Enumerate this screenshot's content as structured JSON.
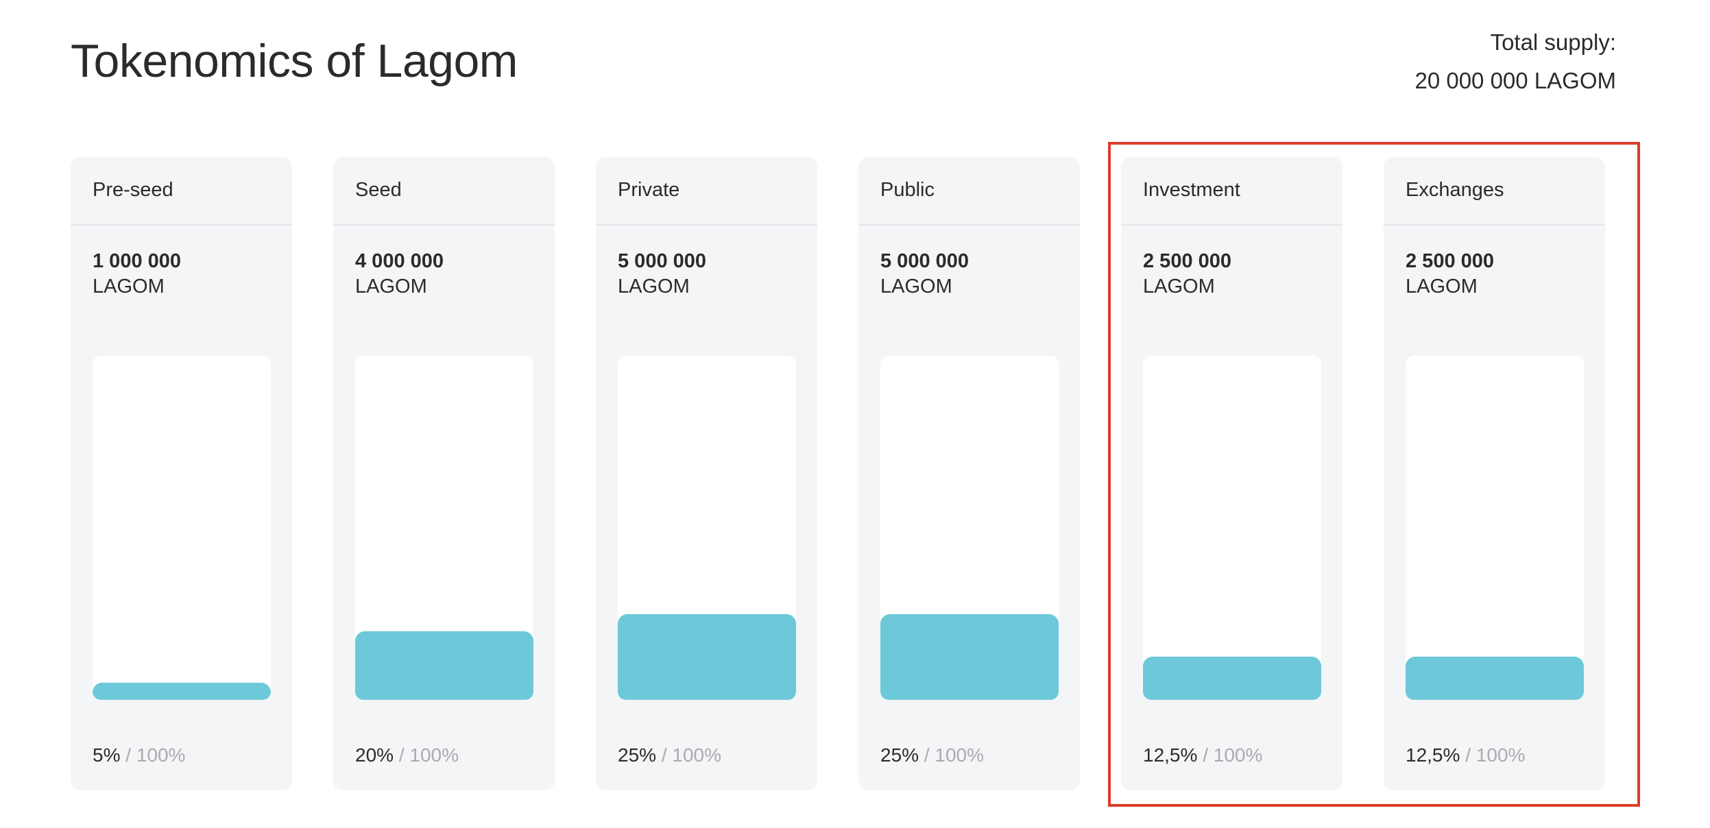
{
  "title": "Tokenomics of Lagom",
  "total_supply": {
    "label": "Total supply:",
    "value": "20 000 000 LAGOM"
  },
  "percent_separator": "/",
  "percent_total": "100%",
  "cards": [
    {
      "label": "Pre-seed",
      "amount": "1 000 000",
      "unit": "LAGOM",
      "percent_text": "5%",
      "fraction": 0.05
    },
    {
      "label": "Seed",
      "amount": "4 000 000",
      "unit": "LAGOM",
      "percent_text": "20%",
      "fraction": 0.2
    },
    {
      "label": "Private",
      "amount": "5 000 000",
      "unit": "LAGOM",
      "percent_text": "25%",
      "fraction": 0.25
    },
    {
      "label": "Public",
      "amount": "5 000 000",
      "unit": "LAGOM",
      "percent_text": "25%",
      "fraction": 0.25
    },
    {
      "label": "Investment",
      "amount": "2 500 000",
      "unit": "LAGOM",
      "percent_text": "12,5%",
      "fraction": 0.125
    },
    {
      "label": "Exchanges",
      "amount": "2 500 000",
      "unit": "LAGOM",
      "percent_text": "12,5%",
      "fraction": 0.125
    }
  ],
  "colors": {
    "bar_fill": "#6dc9da",
    "card_bg": "#f4f5f6",
    "highlight": "#dc3c2a"
  }
}
